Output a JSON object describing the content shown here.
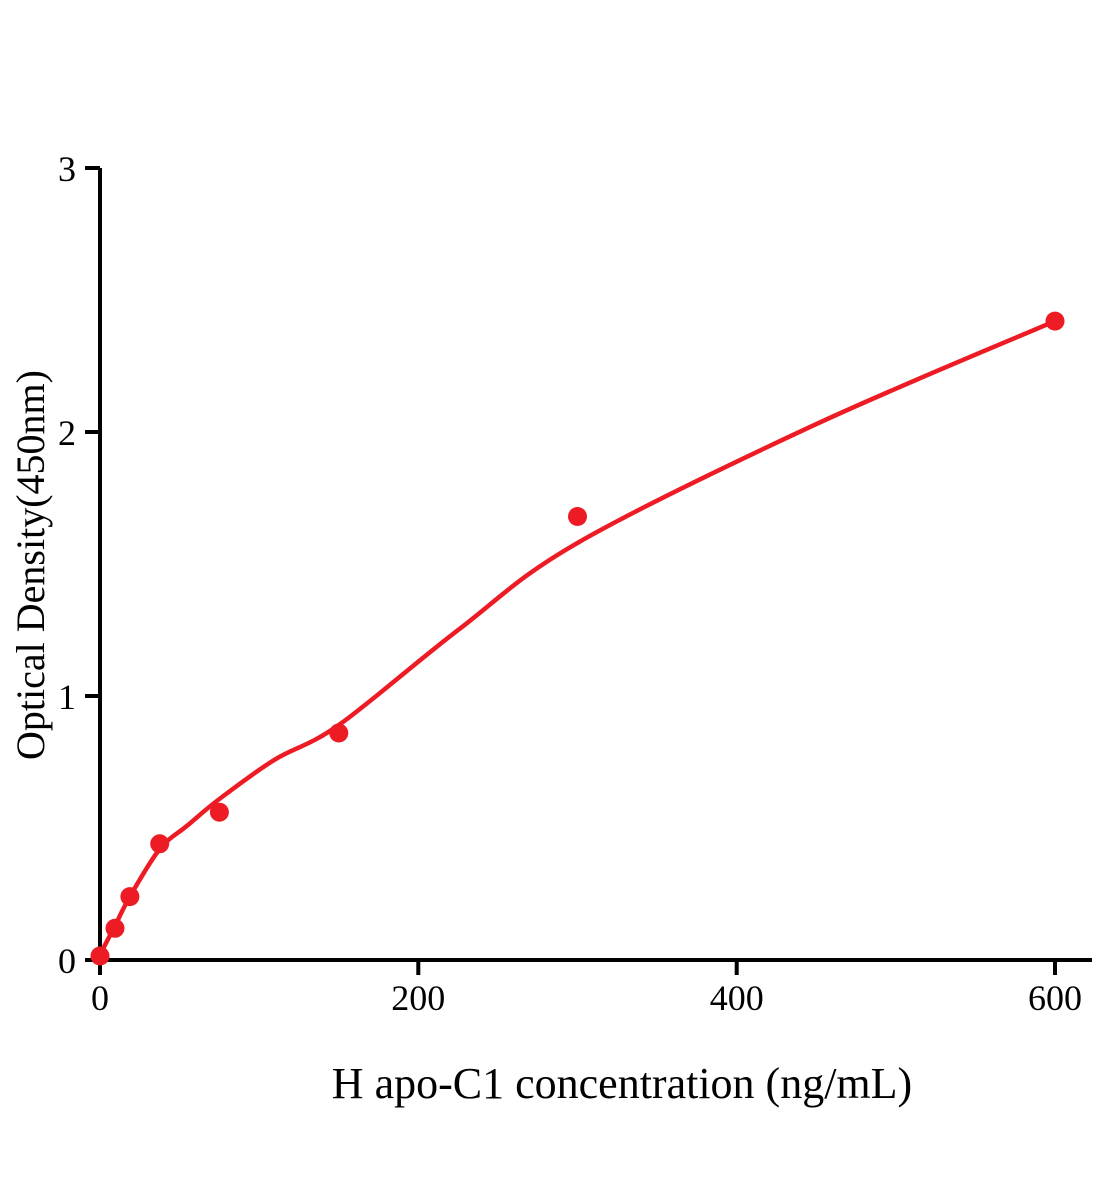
{
  "chart_data": {
    "type": "scatter",
    "title": "",
    "xlabel": "H apo-C1 concentration (ng/mL)",
    "ylabel": "Optical Density(450nm)",
    "xlim": [
      0,
      622
    ],
    "ylim": [
      0,
      3
    ],
    "x_ticks": [
      0,
      200,
      400,
      600
    ],
    "y_ticks": [
      0,
      1,
      2,
      3
    ],
    "grid": false,
    "legend": false,
    "accent_color": "#ed1c24",
    "axis_color": "#000000",
    "points": [
      {
        "x": 0,
        "y": 0.015
      },
      {
        "x": 9.4,
        "y": 0.12
      },
      {
        "x": 18.8,
        "y": 0.24
      },
      {
        "x": 37.5,
        "y": 0.44
      },
      {
        "x": 75,
        "y": 0.56
      },
      {
        "x": 150,
        "y": 0.86
      },
      {
        "x": 300,
        "y": 1.68
      },
      {
        "x": 600,
        "y": 2.42
      }
    ],
    "curve": [
      {
        "x": 0,
        "y": 0.02
      },
      {
        "x": 9.4,
        "y": 0.13
      },
      {
        "x": 18.8,
        "y": 0.24
      },
      {
        "x": 37.5,
        "y": 0.42
      },
      {
        "x": 55,
        "y": 0.51
      },
      {
        "x": 75,
        "y": 0.61
      },
      {
        "x": 110,
        "y": 0.76
      },
      {
        "x": 150,
        "y": 0.89
      },
      {
        "x": 225,
        "y": 1.25
      },
      {
        "x": 300,
        "y": 1.58
      },
      {
        "x": 450,
        "y": 2.03
      },
      {
        "x": 600,
        "y": 2.42
      }
    ]
  }
}
